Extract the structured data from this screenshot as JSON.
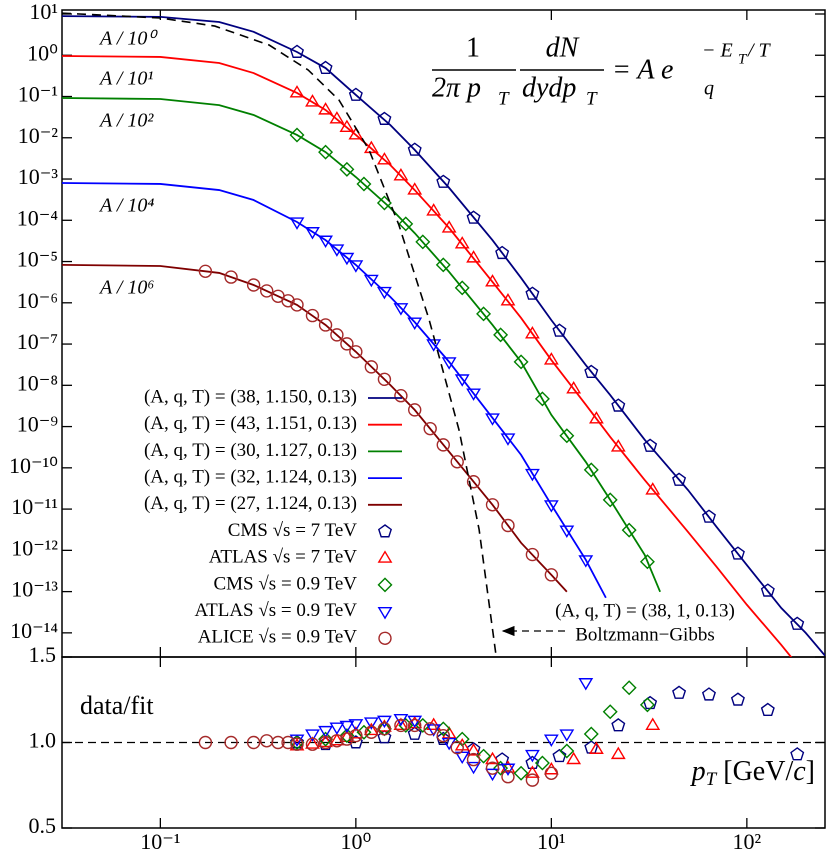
{
  "chart_data": {
    "type": "line",
    "xscale": "log",
    "yscale": "log",
    "xlim": [
      0.0314,
      251
    ],
    "xticks": [
      {
        "value": 0.1,
        "label": "10⁻¹"
      },
      {
        "value": 1,
        "label": "10⁰"
      },
      {
        "value": 10,
        "label": "10¹"
      },
      {
        "value": 100,
        "label": "10²"
      }
    ],
    "ylim": [
      2.6e-15,
      12.5
    ],
    "yticks": [
      {
        "value": 10,
        "label": "10¹"
      },
      {
        "value": 1,
        "label": "10⁰"
      },
      {
        "value": 0.1,
        "label": "10⁻¹"
      },
      {
        "value": 0.01,
        "label": "10⁻²"
      },
      {
        "value": 0.001,
        "label": "10⁻³"
      },
      {
        "value": 0.0001,
        "label": "10⁻⁴"
      },
      {
        "value": 1e-05,
        "label": "10⁻⁵"
      },
      {
        "value": 1e-06,
        "label": "10⁻⁶"
      },
      {
        "value": 1e-07,
        "label": "10⁻⁷"
      },
      {
        "value": 1e-08,
        "label": "10⁻⁸"
      },
      {
        "value": 1e-09,
        "label": "10⁻⁹"
      },
      {
        "value": 1e-10,
        "label": "10⁻¹⁰"
      },
      {
        "value": 1e-11,
        "label": "10⁻¹¹"
      },
      {
        "value": 1e-12,
        "label": "10⁻¹²"
      },
      {
        "value": 1e-13,
        "label": "10⁻¹³"
      },
      {
        "value": 1e-14,
        "label": "10⁻¹⁴"
      }
    ],
    "xlabel": {
      "p": "p",
      "sub": "T",
      "unit": " [GeV/",
      "c": "c",
      "end": "]"
    },
    "formula": {
      "num1": "1",
      "den1": "2π p",
      "den1_sub": "T",
      "num2": "dN",
      "den2": "dydp",
      "den2_sub": "T",
      "rhs": "= A e",
      "q": "q",
      "exp": "− E",
      "exp_sub": "T",
      "exp_tail": " / T"
    },
    "bg_annotation": [
      "(A, q, T) = (38, 1, 0.13)",
      "Boltzmann−Gibbs"
    ],
    "ratio_label": "data/fit",
    "ratio_ylim": [
      0.5,
      1.5
    ],
    "ratio_yticks": [
      0.5,
      {
        "value": 1,
        "label": "1.0"
      },
      1.5
    ],
    "series": [
      {
        "name": "(A, q, T) = (38, 1.150, 0.13)",
        "color": "#00007f",
        "style": "line",
        "label": "A / 10⁰",
        "x": [
          0.0314,
          0.1,
          0.2,
          0.3,
          0.5,
          0.7,
          1,
          1.5,
          2,
          3,
          5,
          7,
          10,
          15,
          20,
          30,
          50,
          70,
          100,
          150,
          200,
          251
        ],
        "values": [
          8.9,
          8.5,
          6.4,
          3.7,
          1.2,
          0.49,
          0.109,
          0.0204,
          0.0051,
          0.00061,
          3.3e-05,
          4e-06,
          3.8e-07,
          3.1e-08,
          5.8e-09,
          4.8e-10,
          2.9e-11,
          3.7e-12,
          4.4e-13,
          4e-14,
          1e-14,
          2.8e-15
        ]
      },
      {
        "name": "(A, q, T) = (43, 1.151, 0.13)",
        "color": "#ff0000",
        "style": "line",
        "label": "A / 10¹",
        "x": [
          0.0314,
          0.1,
          0.2,
          0.3,
          0.5,
          0.7,
          1,
          1.5,
          2,
          3,
          5,
          7,
          10,
          15,
          20,
          30,
          50,
          70,
          100,
          150,
          176
        ],
        "values": [
          0.96,
          0.91,
          0.65,
          0.37,
          0.122,
          0.0472,
          0.0117,
          0.00219,
          0.00054,
          6.5e-05,
          3.2e-06,
          4.3e-07,
          4.1e-08,
          3.4e-09,
          5.6e-10,
          5.1e-11,
          2.8e-12,
          4e-13,
          4.8e-14,
          5.1e-15,
          2e-15
        ]
      },
      {
        "name": "(A, q, T) = (30, 1.127, 0.13)",
        "color": "#008000",
        "style": "line",
        "label": "A / 10²",
        "x": [
          0.0314,
          0.1,
          0.2,
          0.3,
          0.5,
          0.7,
          1,
          1.5,
          2,
          3,
          5,
          7,
          10,
          15,
          20,
          30,
          36
        ],
        "values": [
          0.092,
          0.087,
          0.062,
          0.0357,
          0.0117,
          0.0045,
          0.00112,
          0.0002,
          4.9e-05,
          5.6e-06,
          2.9e-07,
          3.7e-08,
          1.92e-09,
          1.39e-10,
          1.67e-11,
          7.8e-13,
          9.9e-14
        ]
      },
      {
        "name": "(A, q, T) = (32, 1.124, 0.13)",
        "color": "#0000ff",
        "style": "line",
        "label": "A / 10⁴",
        "x": [
          0.0314,
          0.1,
          0.2,
          0.3,
          0.5,
          0.7,
          1,
          1.5,
          2,
          3,
          5,
          7,
          10,
          15,
          19
        ],
        "values": [
          0.0008,
          0.00076,
          0.00054,
          0.00031,
          9.1e-05,
          3.3e-05,
          8.3e-06,
          1.39e-06,
          3.4e-07,
          3.7e-08,
          1.62e-09,
          2.06e-10,
          1.27e-11,
          5.9e-13,
          7.1e-14
        ]
      },
      {
        "name": "(A, q, T) = (27, 1.124, 0.13)",
        "color": "#7f0000",
        "style": "line",
        "label": "A / 10⁶",
        "x": [
          0.0314,
          0.1,
          0.2,
          0.3,
          0.5,
          0.7,
          1,
          1.5,
          2,
          3,
          5,
          7,
          10,
          12
        ],
        "values": [
          8.3e-06,
          7.8e-06,
          5.3e-06,
          2.7e-06,
          8.9e-07,
          2.9e-07,
          6.5e-08,
          1.02e-08,
          2.54e-09,
          2.44e-10,
          1.27e-11,
          1.52e-12,
          2.55e-13,
          9.9e-14
        ]
      },
      {
        "name": "CMS √s = 7 TeV",
        "color": "#00007f",
        "style": "marker",
        "marker": "pentagon",
        "x": [
          0.5,
          0.7,
          1,
          1.4,
          2,
          2.8,
          4,
          5.6,
          8,
          11,
          16,
          22,
          32,
          45,
          64,
          90,
          128,
          181
        ],
        "values": [
          1.2,
          0.49,
          0.109,
          0.0285,
          0.0051,
          0.00085,
          0.000115,
          1.6e-05,
          1.65e-06,
          2.1e-07,
          2.1e-08,
          3.2e-09,
          3.4e-10,
          5.1e-11,
          6.5e-12,
          8.3e-13,
          1.05e-13,
          1.65e-14
        ],
        "ratio": [
          1.0,
          0.99,
          1.0,
          1.03,
          1.05,
          1.02,
          0.96,
          0.9,
          0.88,
          0.92,
          0.97,
          1.1,
          1.23,
          1.29,
          1.28,
          1.25,
          1.19,
          0.93
        ]
      },
      {
        "name": "ATLAS √s = 7 TeV",
        "color": "#ff0000",
        "style": "marker",
        "marker": "triangle-up",
        "x": [
          0.5,
          0.6,
          0.7,
          0.8,
          0.9,
          1.0,
          1.2,
          1.4,
          1.7,
          2.0,
          2.5,
          3.0,
          3.5,
          4.0,
          5,
          6,
          8,
          10,
          13,
          17,
          22,
          33
        ],
        "values": [
          0.122,
          0.0736,
          0.0472,
          0.0286,
          0.0178,
          0.0117,
          0.0055,
          0.0029,
          0.00119,
          0.00054,
          0.000168,
          6.5e-05,
          2.67e-05,
          1.22e-05,
          3.2e-06,
          1.11e-06,
          1.76e-07,
          4.1e-08,
          8.2e-09,
          1.53e-09,
          3.2e-10,
          2.9e-11
        ],
        "ratio": [
          0.98,
          0.99,
          1.0,
          1.01,
          1.03,
          1.05,
          1.07,
          1.09,
          1.1,
          1.11,
          1.1,
          1.05,
          0.98,
          0.95,
          0.9,
          0.85,
          0.82,
          0.84,
          0.9,
          0.96,
          0.93,
          1.1
        ]
      },
      {
        "name": "CMS √s = 0.9 TeV",
        "color": "#008000",
        "style": "marker",
        "marker": "diamond",
        "x": [
          0.5,
          0.7,
          0.9,
          1.1,
          1.4,
          1.8,
          2.2,
          2.8,
          3.5,
          4.5,
          5.5,
          7,
          9,
          12,
          16,
          20,
          25,
          31
        ],
        "values": [
          0.0117,
          0.0045,
          0.00171,
          0.00076,
          0.000263,
          8.2e-05,
          3e-05,
          8.3e-06,
          2.3e-06,
          5.4e-07,
          1.67e-07,
          3.7e-08,
          4.7e-09,
          6e-10,
          8.9e-11,
          1.67e-11,
          3.1e-12,
          5.3e-13
        ],
        "ratio": [
          1.0,
          1.02,
          1.04,
          1.06,
          1.08,
          1.1,
          1.1,
          1.08,
          1.02,
          0.92,
          0.85,
          0.82,
          0.88,
          0.95,
          1.05,
          1.18,
          1.32,
          1.22
        ]
      },
      {
        "name": "ATLAS √s = 0.9 TeV",
        "color": "#0000ff",
        "style": "marker",
        "marker": "triangle-down",
        "x": [
          0.5,
          0.6,
          0.7,
          0.8,
          0.9,
          1.0,
          1.2,
          1.4,
          1.7,
          2.0,
          2.5,
          3.0,
          3.5,
          4,
          5,
          6,
          8,
          10,
          12,
          15
        ],
        "values": [
          9.1e-05,
          5.3e-05,
          3.3e-05,
          2.02e-05,
          1.26e-05,
          8.3e-06,
          3.7e-06,
          1.88e-06,
          7.6e-07,
          3.4e-07,
          1.01e-07,
          3.7e-08,
          1.43e-08,
          6.5e-09,
          1.62e-09,
          5.3e-10,
          7.3e-11,
          1.27e-11,
          3.1e-12,
          5.9e-13
        ],
        "ratio": [
          1.02,
          1.05,
          1.07,
          1.09,
          1.1,
          1.11,
          1.12,
          1.13,
          1.14,
          1.13,
          1.08,
          1.0,
          0.92,
          0.86,
          0.82,
          0.85,
          0.93,
          1.02,
          1.05,
          1.35
        ]
      },
      {
        "name": "ALICE √s = 0.9 TeV",
        "color": "#a52a2a",
        "style": "marker",
        "marker": "circle",
        "x": [
          0.17,
          0.23,
          0.3,
          0.35,
          0.4,
          0.45,
          0.5,
          0.6,
          0.7,
          0.8,
          0.9,
          1.0,
          1.2,
          1.4,
          1.7,
          2.0,
          2.4,
          2.8,
          3.3,
          4,
          5,
          6,
          8,
          10
        ],
        "values": [
          5.8e-06,
          4.2e-06,
          2.7e-06,
          1.94e-06,
          1.44e-06,
          1.12e-06,
          8.9e-07,
          4.9e-07,
          2.9e-07,
          1.67e-07,
          1.01e-07,
          6.5e-08,
          2.8e-08,
          1.4e-08,
          5.6e-09,
          2.54e-09,
          8.9e-10,
          3.6e-10,
          1.4e-10,
          4.6e-11,
          1.27e-11,
          4e-12,
          7.9e-13,
          2.55e-13
        ],
        "ratio": [
          1.0,
          1.0,
          1.0,
          1.01,
          1.0,
          1.0,
          0.99,
          0.99,
          1.0,
          1.01,
          1.02,
          1.04,
          1.06,
          1.08,
          1.1,
          1.1,
          1.08,
          1.04,
          0.97,
          0.9,
          0.85,
          0.8,
          0.78,
          0.82
        ]
      },
      {
        "color": "#000000",
        "style": "dashed",
        "x": [
          0.0314,
          0.1,
          0.19,
          0.36,
          0.57,
          0.82,
          1.17,
          1.66,
          2.37,
          3.37,
          4.27,
          5.22
        ],
        "values": [
          10.5,
          8.0,
          5.1,
          1.77,
          0.44,
          0.082,
          0.005,
          7.7e-05,
          3.9e-07,
          8.3e-10,
          3.2e-12,
          2.7e-15
        ]
      }
    ]
  }
}
